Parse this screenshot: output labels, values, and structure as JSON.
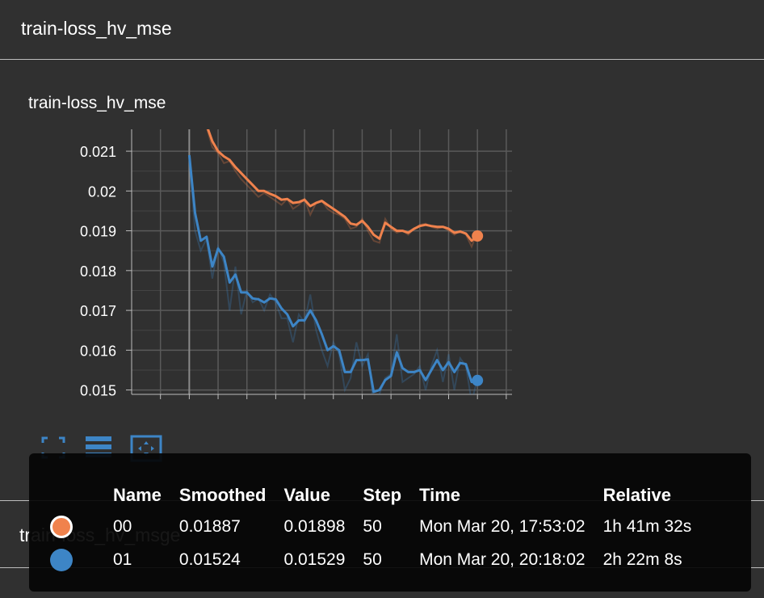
{
  "section": {
    "title": "train-loss_hv_mse"
  },
  "card": {
    "title": "train-loss_hv_mse"
  },
  "second_section": {
    "title": "train-loss_hv_msge"
  },
  "toolbar": {
    "fullscreen_icon": "fullscreen-icon",
    "log_scale_icon": "lines-icon",
    "fit_domain_icon": "fit-domain-icon"
  },
  "colors": {
    "run_00": "#f0824d",
    "run_01": "#3d85c6",
    "background": "#303030",
    "grid": "#5a5a5a"
  },
  "tooltip": {
    "headers": [
      "Name",
      "Smoothed",
      "Value",
      "Step",
      "Time",
      "Relative"
    ],
    "rows": [
      {
        "name": "00",
        "smoothed": "0.01887",
        "value": "0.01898",
        "step": "50",
        "time": "Mon Mar 20, 17:53:02",
        "relative": "1h 41m 32s",
        "color": "#f0824d"
      },
      {
        "name": "01",
        "smoothed": "0.01524",
        "value": "0.01529",
        "step": "50",
        "time": "Mon Mar 20, 20:18:02",
        "relative": "2h 22m 8s",
        "color": "#3d85c6"
      }
    ]
  },
  "chart_data": {
    "type": "line",
    "title": "train-loss_hv_mse",
    "xlabel": "",
    "ylabel": "",
    "xlim": [
      -10,
      56
    ],
    "ylim": [
      0.01489,
      0.02155
    ],
    "y_ticks": [
      "0.015",
      "0.016",
      "0.017",
      "0.018",
      "0.019",
      "0.02",
      "0.021"
    ],
    "grid": true,
    "series": [
      {
        "name": "00",
        "color": "#f0824d",
        "x": [
          3,
          4,
          5,
          6,
          7,
          8,
          9,
          10,
          11,
          12,
          13,
          14,
          15,
          16,
          17,
          18,
          19,
          20,
          21,
          22,
          23,
          24,
          25,
          26,
          27,
          28,
          29,
          30,
          31,
          32,
          33,
          34,
          35,
          36,
          37,
          38,
          39,
          40,
          41,
          42,
          43,
          44,
          45,
          46,
          47,
          48,
          49,
          50
        ],
        "smoothed": [
          0.02165,
          0.02125,
          0.021,
          0.02087,
          0.02078,
          0.0206,
          0.02045,
          0.0203,
          0.02015,
          0.02,
          0.02,
          0.01993,
          0.01987,
          0.01978,
          0.0198,
          0.0197,
          0.01972,
          0.01978,
          0.01962,
          0.0197,
          0.01975,
          0.01965,
          0.01955,
          0.01945,
          0.01935,
          0.01918,
          0.01915,
          0.01925,
          0.0191,
          0.0189,
          0.0188,
          0.0192,
          0.0191,
          0.019,
          0.019,
          0.01895,
          0.01905,
          0.01912,
          0.01915,
          0.01912,
          0.0191,
          0.0191,
          0.01905,
          0.01895,
          0.01898,
          0.01893,
          0.01875,
          0.01887
        ],
        "values": [
          0.0216,
          0.0211,
          0.02095,
          0.0207,
          0.02075,
          0.0205,
          0.0203,
          0.02015,
          0.02,
          0.01985,
          0.01995,
          0.01985,
          0.01975,
          0.01965,
          0.0198,
          0.01955,
          0.01965,
          0.0198,
          0.0194,
          0.0197,
          0.01975,
          0.01955,
          0.01945,
          0.0194,
          0.0193,
          0.01905,
          0.0191,
          0.0193,
          0.019,
          0.01875,
          0.0187,
          0.0193,
          0.01905,
          0.01895,
          0.019,
          0.0189,
          0.01905,
          0.01915,
          0.01918,
          0.0191,
          0.01905,
          0.0191,
          0.019,
          0.0189,
          0.019,
          0.0189,
          0.0186,
          0.01898
        ]
      },
      {
        "name": "01",
        "color": "#3d85c6",
        "x": [
          0,
          1,
          2,
          3,
          4,
          5,
          6,
          7,
          8,
          9,
          10,
          11,
          12,
          13,
          14,
          15,
          16,
          17,
          18,
          19,
          20,
          21,
          22,
          23,
          24,
          25,
          26,
          27,
          28,
          29,
          30,
          31,
          32,
          33,
          34,
          35,
          36,
          37,
          38,
          39,
          40,
          41,
          42,
          43,
          44,
          45,
          46,
          47,
          48,
          49,
          50
        ],
        "smoothed": [
          0.0209,
          0.01945,
          0.01875,
          0.01885,
          0.0181,
          0.01855,
          0.01835,
          0.0177,
          0.0179,
          0.01745,
          0.01745,
          0.0173,
          0.01728,
          0.0172,
          0.0173,
          0.01728,
          0.01705,
          0.0169,
          0.0166,
          0.01675,
          0.01675,
          0.017,
          0.01675,
          0.0164,
          0.016,
          0.0161,
          0.016,
          0.01545,
          0.01545,
          0.01575,
          0.01575,
          0.01577,
          0.01495,
          0.015,
          0.01525,
          0.01535,
          0.01595,
          0.01555,
          0.01545,
          0.01545,
          0.0155,
          0.01525,
          0.0155,
          0.01575,
          0.0155,
          0.0157,
          0.01545,
          0.01568,
          0.01565,
          0.0152,
          0.01524
        ],
        "values": [
          0.0208,
          0.019,
          0.0185,
          0.0188,
          0.0178,
          0.0186,
          0.0182,
          0.017,
          0.0181,
          0.0169,
          0.0175,
          0.0172,
          0.0173,
          0.017,
          0.0174,
          0.0172,
          0.0168,
          0.0168,
          0.0162,
          0.0169,
          0.0167,
          0.0174,
          0.0165,
          0.016,
          0.0156,
          0.0162,
          0.0159,
          0.015,
          0.0153,
          0.0162,
          0.0156,
          0.0159,
          0.0146,
          0.0149,
          0.0153,
          0.0154,
          0.0164,
          0.0152,
          0.0153,
          0.0154,
          0.0156,
          0.015,
          0.0156,
          0.016,
          0.0152,
          0.0159,
          0.015,
          0.0158,
          0.0156,
          0.0147,
          0.01529
        ]
      }
    ]
  }
}
